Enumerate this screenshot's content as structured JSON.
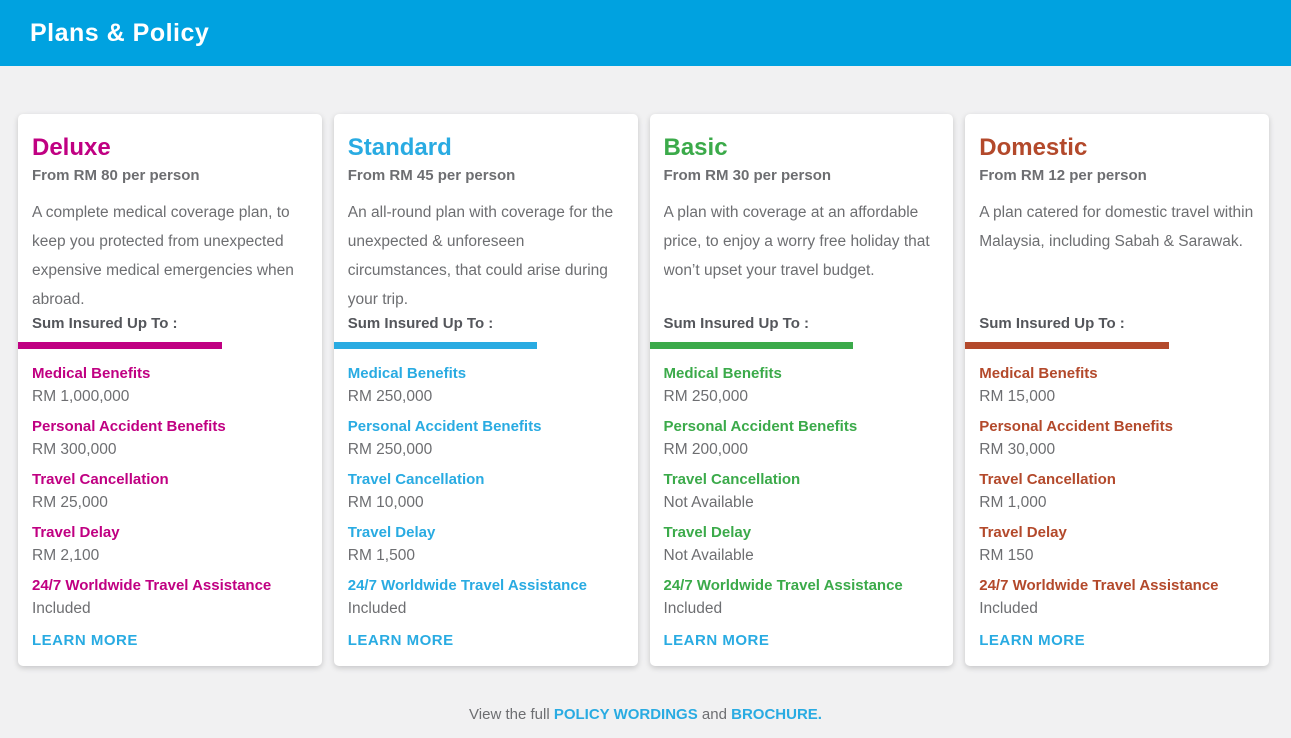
{
  "header": {
    "title": "Plans & Policy"
  },
  "colors": {
    "header_bg": "#00a2e0",
    "link_blue": "#29abe2",
    "page_bg": "#f1f1f2",
    "card_bg": "#ffffff",
    "body_text": "#6d6e71",
    "heading_text": "#54565b"
  },
  "plans": [
    {
      "name": "Deluxe",
      "accent_color": "#c00082",
      "price": "From RM 80 per person",
      "description": "A complete medical coverage plan, to keep you protected from unexpected expensive medical emergencies when abroad.",
      "sum_insured_label": "Sum Insured Up To :",
      "benefits": [
        {
          "label": "Medical Benefits",
          "value": "RM 1,000,000"
        },
        {
          "label": "Personal Accident Benefits",
          "value": "RM 300,000"
        },
        {
          "label": "Travel Cancellation",
          "value": "RM 25,000"
        },
        {
          "label": "Travel Delay",
          "value": "RM 2,100"
        },
        {
          "label": "24/7 Worldwide Travel Assistance",
          "value": "Included"
        }
      ],
      "learn_more_label": "LEARN MORE"
    },
    {
      "name": "Standard",
      "accent_color": "#29abe2",
      "price": "From RM 45 per person",
      "description": "An all-round plan with coverage for the unexpected & unforeseen circumstances, that could arise during your trip.",
      "sum_insured_label": "Sum Insured Up To :",
      "benefits": [
        {
          "label": "Medical Benefits",
          "value": "RM 250,000"
        },
        {
          "label": "Personal Accident Benefits",
          "value": "RM 250,000"
        },
        {
          "label": "Travel Cancellation",
          "value": "RM 10,000"
        },
        {
          "label": "Travel Delay",
          "value": "RM 1,500"
        },
        {
          "label": "24/7 Worldwide Travel Assistance",
          "value": "Included"
        }
      ],
      "learn_more_label": "LEARN MORE"
    },
    {
      "name": "Basic",
      "accent_color": "#3baa4a",
      "price": "From RM 30 per person",
      "description": "A plan with coverage at an affordable price, to enjoy a worry free holiday that won’t upset your travel budget.",
      "sum_insured_label": "Sum Insured Up To :",
      "benefits": [
        {
          "label": "Medical Benefits",
          "value": "RM 250,000"
        },
        {
          "label": "Personal Accident Benefits",
          "value": "RM 200,000"
        },
        {
          "label": "Travel Cancellation",
          "value": "Not Available"
        },
        {
          "label": "Travel Delay",
          "value": "Not Available"
        },
        {
          "label": "24/7 Worldwide Travel Assistance",
          "value": "Included"
        }
      ],
      "learn_more_label": "LEARN MORE"
    },
    {
      "name": "Domestic",
      "accent_color": "#b3492b",
      "price": "From RM 12 per person",
      "description": "A plan catered for domestic travel within Malaysia, including Sabah & Sarawak.",
      "sum_insured_label": "Sum Insured Up To :",
      "benefits": [
        {
          "label": "Medical Benefits",
          "value": "RM 15,000"
        },
        {
          "label": "Personal Accident Benefits",
          "value": "RM 30,000"
        },
        {
          "label": "Travel Cancellation",
          "value": "RM 1,000"
        },
        {
          "label": "Travel Delay",
          "value": "RM 150"
        },
        {
          "label": "24/7 Worldwide Travel Assistance",
          "value": "Included"
        }
      ],
      "learn_more_label": "LEARN MORE"
    }
  ],
  "footer": {
    "prefix": "View the full ",
    "policy_link": "POLICY WORDINGS",
    "conjunction": " and ",
    "brochure_link": "BROCHURE."
  }
}
